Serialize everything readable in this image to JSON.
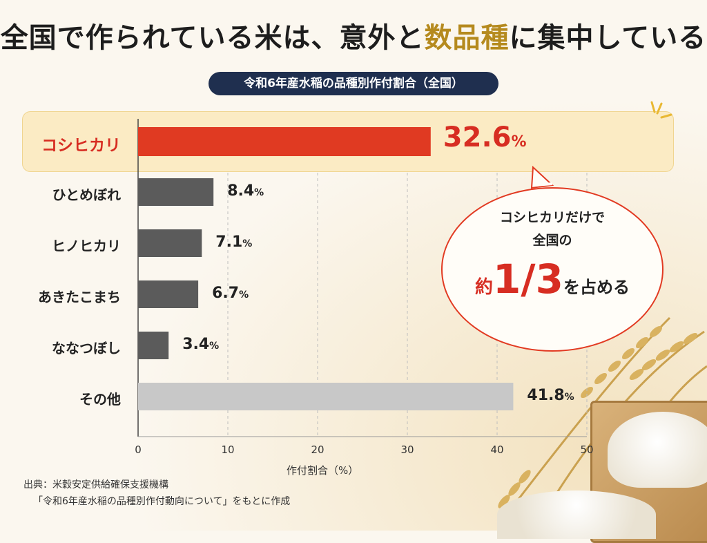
{
  "header": {
    "title_part1": "全国で作られている米は、意外と",
    "title_part2": "数品種",
    "title_part3": "に集中している"
  },
  "chart_data": {
    "type": "bar",
    "orientation": "horizontal",
    "title": "令和6年産水稲の品種別作付割合（全国）",
    "xlabel": "作付割合（%）",
    "xlim": [
      0,
      50
    ],
    "xticks": [
      0,
      10,
      20,
      30,
      40,
      50
    ],
    "categories": [
      "コシヒカリ",
      "ひとめぼれ",
      "ヒノヒカリ",
      "あきたこまち",
      "ななつぼし",
      "その他"
    ],
    "values": [
      32.6,
      8.4,
      7.1,
      6.7,
      3.4,
      41.8
    ],
    "value_labels": [
      "32.6",
      "8.4",
      "7.1",
      "6.7",
      "3.4",
      "41.8"
    ],
    "unit": "%",
    "highlight": "コシヒカリ",
    "colors": {
      "highlight": "#e03a22",
      "main": "#5b5b5b",
      "other": "#c8c8c8",
      "accent_text": "#d72d22",
      "gold": "#b58a1e",
      "navy": "#1f2f4f"
    }
  },
  "callout": {
    "line1": "コシヒカリだけで",
    "line2": "全国の",
    "prefix": "約",
    "big": "1/3",
    "suffix": "を占める"
  },
  "source": {
    "line1": "出典：米穀安定供給確保支援機構",
    "line2": "「令和6年産水稲の品種別作付動向について」をもとに作成"
  },
  "decor": {
    "image": "rice-stalks-and-masu-box"
  }
}
